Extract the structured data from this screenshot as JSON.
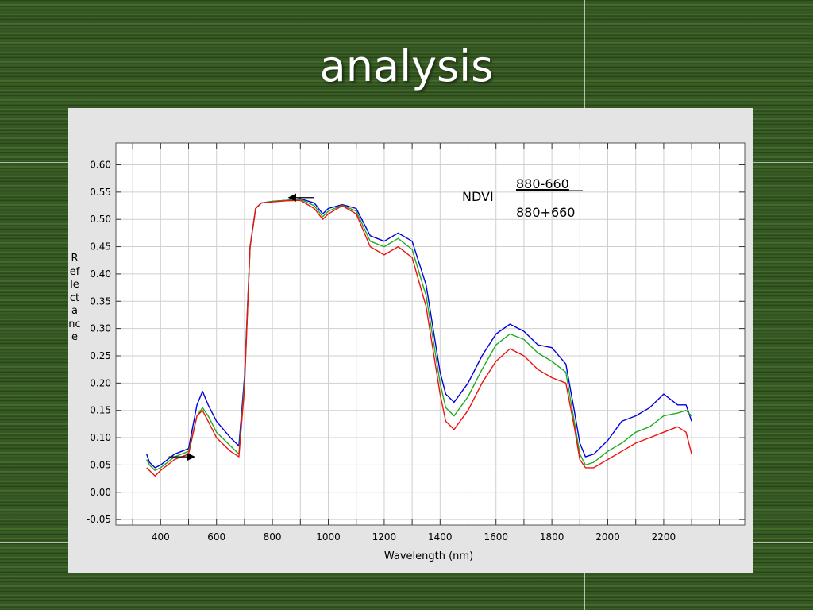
{
  "slide": {
    "title": "analysis"
  },
  "chart_data": {
    "type": "line",
    "xlabel": "Wavelength (nm)",
    "ylabel": "Reflectance",
    "xlim": [
      240,
      2490
    ],
    "ylim": [
      -0.06,
      0.64
    ],
    "xticks": [
      400,
      600,
      800,
      1000,
      1200,
      1400,
      1600,
      1800,
      2000,
      2200
    ],
    "yticks": [
      -0.05,
      0.0,
      0.05,
      0.1,
      0.15,
      0.2,
      0.25,
      0.3,
      0.35,
      0.4,
      0.45,
      0.5,
      0.55,
      0.6
    ],
    "grid": true,
    "series": [
      {
        "color": "#0000dd",
        "x": [
          350,
          360,
          380,
          400,
          450,
          500,
          530,
          550,
          570,
          600,
          650,
          680,
          700,
          720,
          740,
          760,
          800,
          850,
          900,
          950,
          980,
          1000,
          1050,
          1100,
          1150,
          1200,
          1250,
          1300,
          1350,
          1400,
          1420,
          1450,
          1500,
          1550,
          1600,
          1650,
          1700,
          1750,
          1800,
          1850,
          1880,
          1900,
          1920,
          1950,
          2000,
          2050,
          2100,
          2150,
          2200,
          2250,
          2280,
          2300
        ],
        "y": [
          0.07,
          0.055,
          0.045,
          0.05,
          0.07,
          0.08,
          0.16,
          0.185,
          0.16,
          0.13,
          0.1,
          0.085,
          0.21,
          0.45,
          0.52,
          0.53,
          0.533,
          0.535,
          0.538,
          0.53,
          0.51,
          0.52,
          0.527,
          0.52,
          0.47,
          0.46,
          0.475,
          0.46,
          0.38,
          0.22,
          0.18,
          0.165,
          0.2,
          0.25,
          0.29,
          0.308,
          0.295,
          0.27,
          0.265,
          0.235,
          0.15,
          0.09,
          0.065,
          0.07,
          0.095,
          0.13,
          0.14,
          0.155,
          0.18,
          0.16,
          0.16,
          0.13
        ]
      },
      {
        "color": "#22aa22",
        "x": [
          350,
          360,
          380,
          400,
          450,
          500,
          530,
          550,
          570,
          600,
          650,
          680,
          700,
          720,
          740,
          760,
          800,
          850,
          900,
          950,
          980,
          1000,
          1050,
          1100,
          1150,
          1200,
          1250,
          1300,
          1350,
          1400,
          1420,
          1450,
          1500,
          1550,
          1600,
          1650,
          1700,
          1750,
          1800,
          1850,
          1880,
          1900,
          1920,
          1950,
          2000,
          2050,
          2100,
          2150,
          2200,
          2250,
          2280,
          2300
        ],
        "y": [
          0.06,
          0.05,
          0.04,
          0.045,
          0.065,
          0.075,
          0.14,
          0.155,
          0.14,
          0.11,
          0.085,
          0.07,
          0.2,
          0.45,
          0.52,
          0.53,
          0.533,
          0.535,
          0.537,
          0.525,
          0.505,
          0.515,
          0.526,
          0.515,
          0.46,
          0.45,
          0.465,
          0.445,
          0.36,
          0.2,
          0.155,
          0.14,
          0.175,
          0.225,
          0.27,
          0.29,
          0.28,
          0.255,
          0.24,
          0.22,
          0.13,
          0.07,
          0.05,
          0.055,
          0.075,
          0.09,
          0.11,
          0.12,
          0.14,
          0.145,
          0.15,
          0.14
        ]
      },
      {
        "color": "#ee1111",
        "x": [
          350,
          360,
          380,
          400,
          450,
          500,
          530,
          550,
          570,
          600,
          650,
          680,
          700,
          720,
          740,
          760,
          800,
          850,
          900,
          950,
          980,
          1000,
          1050,
          1100,
          1150,
          1200,
          1250,
          1300,
          1350,
          1400,
          1420,
          1450,
          1500,
          1550,
          1600,
          1650,
          1700,
          1750,
          1800,
          1850,
          1880,
          1900,
          1920,
          1950,
          2000,
          2050,
          2100,
          2150,
          2200,
          2250,
          2280,
          2300
        ],
        "y": [
          0.045,
          0.04,
          0.03,
          0.04,
          0.06,
          0.07,
          0.14,
          0.15,
          0.13,
          0.1,
          0.075,
          0.065,
          0.19,
          0.45,
          0.52,
          0.53,
          0.532,
          0.534,
          0.535,
          0.52,
          0.5,
          0.51,
          0.525,
          0.51,
          0.45,
          0.435,
          0.45,
          0.43,
          0.34,
          0.18,
          0.13,
          0.115,
          0.15,
          0.2,
          0.24,
          0.263,
          0.25,
          0.225,
          0.21,
          0.2,
          0.12,
          0.06,
          0.045,
          0.045,
          0.06,
          0.075,
          0.09,
          0.1,
          0.11,
          0.12,
          0.11,
          0.07
        ]
      }
    ],
    "annotations": {
      "ndvi_label": "NDVI",
      "numerator": "880-660",
      "denominator": "880+660",
      "arrows": [
        {
          "x": 950,
          "y": 0.54,
          "direction": "left"
        },
        {
          "x": 520,
          "y": 0.065,
          "direction": "right"
        }
      ]
    }
  }
}
